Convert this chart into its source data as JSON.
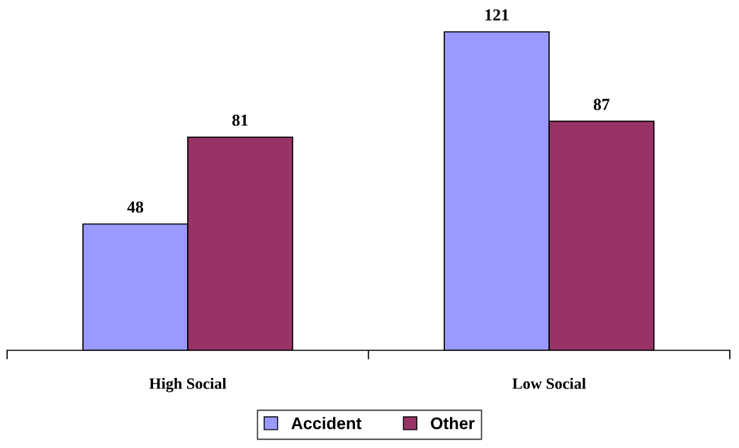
{
  "chart_data": {
    "type": "bar",
    "categories": [
      "High Social",
      "Low Social"
    ],
    "series": [
      {
        "name": "Accident",
        "color": "#9999ff",
        "values": [
          48,
          121
        ]
      },
      {
        "name": "Other",
        "color": "#993366",
        "values": [
          81,
          87
        ]
      }
    ],
    "data_labels": true,
    "legend": "bottom",
    "grid": false
  }
}
